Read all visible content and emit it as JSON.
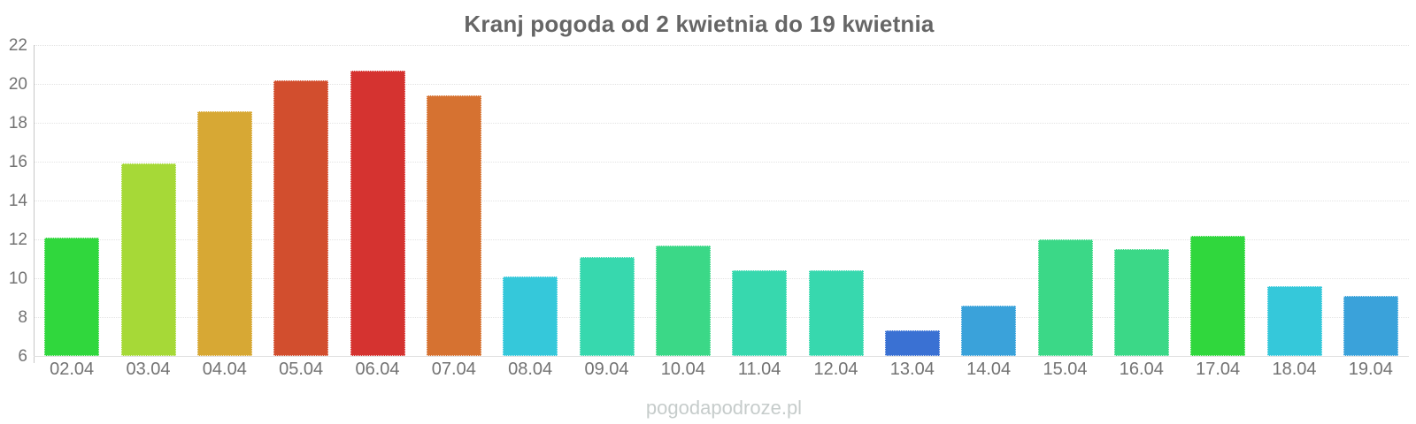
{
  "page": {
    "title": "Kranj pogoda od 2 kwietnia do 19 kwietnia",
    "watermark": "pogodapodroze.pl"
  },
  "chart_data": {
    "type": "bar",
    "title": "Kranj pogoda od 2 kwietnia do 19 kwietnia",
    "categories": [
      "02.04",
      "03.04",
      "04.04",
      "05.04",
      "06.04",
      "07.04",
      "08.04",
      "09.04",
      "10.04",
      "11.04",
      "12.04",
      "13.04",
      "14.04",
      "15.04",
      "16.04",
      "17.04",
      "18.04",
      "19.04"
    ],
    "values": [
      12.1,
      15.9,
      18.6,
      20.2,
      20.7,
      19.4,
      10.1,
      11.1,
      11.7,
      10.4,
      10.4,
      7.3,
      8.6,
      12.0,
      11.5,
      12.2,
      9.6,
      9.1
    ],
    "bar_colors": [
      "#30d73d",
      "#a6d937",
      "#d7a834",
      "#d24e2e",
      "#d53330",
      "#d67231",
      "#35c8da",
      "#37d8ae",
      "#3bd887",
      "#37d8ae",
      "#37d8ae",
      "#3a71d3",
      "#3aa2da",
      "#3bd887",
      "#3bd887",
      "#30d73d",
      "#35c8da",
      "#3aa2da"
    ],
    "xlabel": "",
    "ylabel": "",
    "ylim": [
      6,
      22
    ],
    "yticks": [
      6,
      8,
      10,
      12,
      14,
      16,
      18,
      20,
      22
    ],
    "grid": "horizontal-dotted",
    "legend": "none"
  },
  "style": {
    "title_color": "#666666",
    "tick_label_color": "#737373",
    "y_axis_line_color": "#c6c6c6",
    "x_axis_line_color": "#e0e0e0",
    "gridline_color": "#e3e3e3",
    "watermark_color": "#c6cccb",
    "background": "#ffffff"
  }
}
